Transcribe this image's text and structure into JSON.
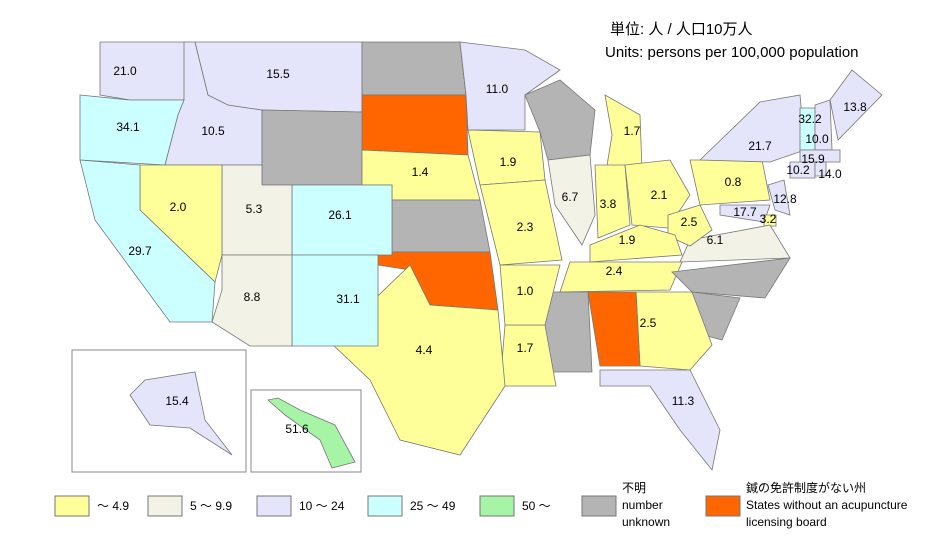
{
  "units": {
    "ja": "単位:  人  /  人口10万人",
    "en": "Units: persons per 100,000 population"
  },
  "legend": [
    {
      "lines": [
        "～ 4.9"
      ],
      "color": "#ffff99"
    },
    {
      "lines": [
        "5 ～ 9.9"
      ],
      "color": "#f2f2e6"
    },
    {
      "lines": [
        "10 ～ 24"
      ],
      "color": "#e4e4fb"
    },
    {
      "lines": [
        "25 ～ 49"
      ],
      "color": "#ccffff"
    },
    {
      "lines": [
        "50 ～"
      ],
      "color": "#a6f5a6"
    },
    {
      "lines": [
        "不明",
        "number",
        "unknown"
      ],
      "color": "#b4b4b4"
    },
    {
      "lines": [
        "鍼の免許制度がない州",
        "States without an acupuncture",
        "licensing board"
      ],
      "color": "#ff6600"
    }
  ],
  "regions": [
    {
      "label": "21.0",
      "color": "#e4e4fb"
    },
    {
      "label": "34.1",
      "color": "#ccffff"
    },
    {
      "label": "10.5",
      "color": "#e4e4fb"
    },
    {
      "label": "15.5",
      "color": "#e4e4fb"
    },
    {
      "color": "#b4b4b4"
    },
    {
      "color": "#ff6600"
    },
    {
      "label": "11.0",
      "color": "#e4e4fb"
    },
    {
      "color": "#b4b4b4"
    },
    {
      "label": "1.4",
      "color": "#ffff99"
    },
    {
      "label": "1.9",
      "color": "#ffff99"
    },
    {
      "color": "#b4b4b4"
    },
    {
      "label": "1.7",
      "color": "#ffff99"
    },
    {
      "label": "6.7",
      "color": "#f2f2e6"
    },
    {
      "label": "3.8",
      "color": "#ffff99"
    },
    {
      "label": "2.1",
      "color": "#ffff99"
    },
    {
      "label": "0.8",
      "color": "#ffff99"
    },
    {
      "label": "21.7",
      "color": "#e4e4fb"
    },
    {
      "label": "32.2",
      "color": "#ccffff"
    },
    {
      "label": "10.0",
      "color": "#e4e4fb"
    },
    {
      "label": "13.8",
      "color": "#e4e4fb"
    },
    {
      "label": "15.9",
      "color": "#e4e4fb"
    },
    {
      "label": "10.2",
      "color": "#e4e4fb"
    },
    {
      "label": "14.0",
      "color": "#e4e4fb"
    },
    {
      "label": "12.8",
      "color": "#e4e4fb"
    },
    {
      "label": "17.7",
      "color": "#e4e4fb"
    },
    {
      "label": "3.2",
      "color": "#ffff99"
    },
    {
      "label": "6.1",
      "color": "#f2f2e6"
    },
    {
      "label": "2.5",
      "color": "#ffff99"
    },
    {
      "label": "1.9",
      "color": "#ffff99"
    },
    {
      "label": "2.4",
      "color": "#ffff99"
    },
    {
      "color": "#b4b4b4"
    },
    {
      "color": "#b4b4b4"
    },
    {
      "label": "2.5",
      "color": "#ffff99"
    },
    {
      "label": "11.3",
      "color": "#e4e4fb"
    },
    {
      "color": "#ff6600"
    },
    {
      "color": "#b4b4b4"
    },
    {
      "label": "1.7",
      "color": "#ffff99"
    },
    {
      "label": "1.0",
      "color": "#ffff99"
    },
    {
      "label": "2.3",
      "color": "#ffff99"
    },
    {
      "color": "#b4b4b4"
    },
    {
      "color": "#ff6600"
    },
    {
      "label": "4.4",
      "color": "#ffff99"
    },
    {
      "label": "26.1",
      "color": "#ccffff"
    },
    {
      "label": "31.1",
      "color": "#ccffff"
    },
    {
      "label": "5.3",
      "color": "#f2f2e6"
    },
    {
      "label": "8.8",
      "color": "#f2f2e6"
    },
    {
      "label": "2.0",
      "color": "#ffff99"
    },
    {
      "label": "29.7",
      "color": "#ccffff"
    },
    {
      "label": "15.4",
      "color": "#e4e4fb"
    },
    {
      "label": "51.6",
      "color": "#a6f5a6"
    }
  ]
}
